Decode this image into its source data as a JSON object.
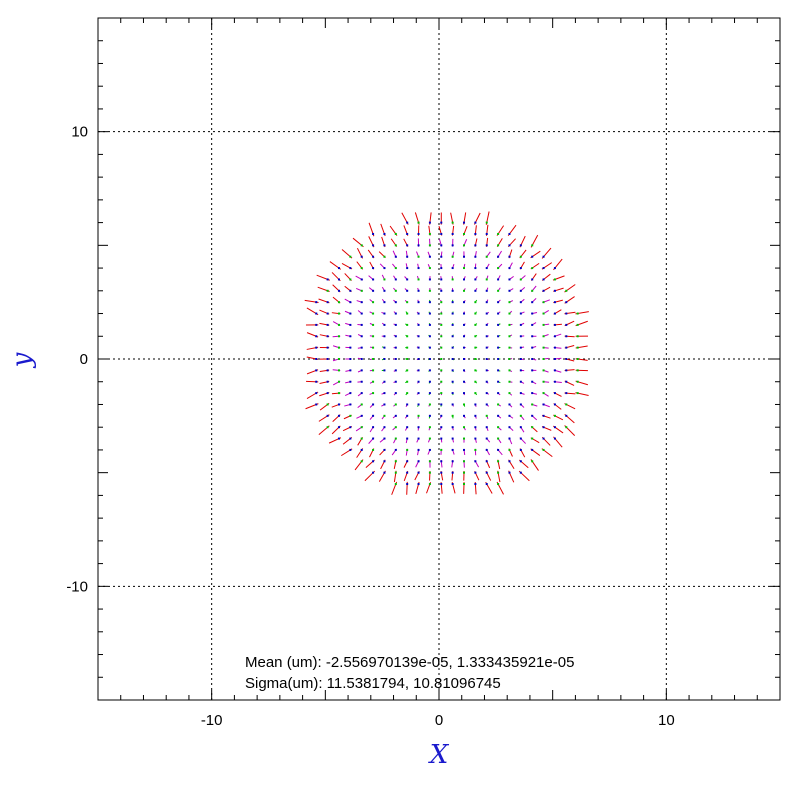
{
  "chart_data": {
    "type": "scatter",
    "plot_style": "vector field",
    "xlabel": "X",
    "ylabel": "y",
    "xlim": [
      -15,
      15
    ],
    "ylim": [
      -15,
      15
    ],
    "grid": true,
    "grid_style": "dotted",
    "xticks": [
      -10,
      0,
      10
    ],
    "yticks": [
      -10,
      0,
      10
    ],
    "xtick_labels": [
      "-10",
      "0",
      "10"
    ],
    "ytick_labels": [
      "-10",
      "0",
      "10"
    ],
    "field": {
      "grid_spacing": 0.5,
      "region": "disc",
      "center": [
        0.3,
        0.2
      ],
      "radius": 6.2,
      "colors": {
        "small": "#00c000",
        "medium": "#c000c0",
        "large": "#e00000",
        "marker": "#0000c0"
      }
    },
    "annotations": [
      "Mean (um): -2.556970139e-05, 1.333435921e-05",
      "Sigma(um): 11.5381794, 10.81096745"
    ]
  }
}
